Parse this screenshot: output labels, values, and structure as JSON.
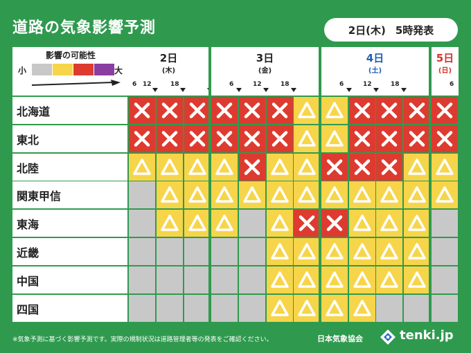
{
  "title": "道路の気象影響予測",
  "issued": {
    "date": "2日(木)",
    "time": "5時発表"
  },
  "legend": {
    "title": "影響の可能性",
    "small": "小",
    "large": "大",
    "levels": [
      {
        "name": "none",
        "color": "#c8c8c8"
      },
      {
        "name": "low",
        "color": "#f6d54a"
      },
      {
        "name": "high",
        "color": "#dd3b30"
      },
      {
        "name": "very-high",
        "color": "#8b3ea0"
      }
    ]
  },
  "days": [
    {
      "day": "2日",
      "dow": "(木)",
      "color": "#222222",
      "hours": [
        "6",
        "12",
        "18"
      ]
    },
    {
      "day": "3日",
      "dow": "(金)",
      "color": "#222222",
      "hours": [
        "6",
        "12",
        "18"
      ]
    },
    {
      "day": "4日",
      "dow": "(土)",
      "color": "#1f5fb8",
      "hours": [
        "6",
        "12",
        "18"
      ]
    },
    {
      "day": "5日",
      "dow": "(日)",
      "color": "#d2342b",
      "hours": [
        "6"
      ]
    }
  ],
  "regions": [
    {
      "name": "北海道",
      "cells": [
        "x",
        "x",
        "x",
        "x",
        "x",
        "x",
        "tri",
        "tri",
        "x",
        "x",
        "x",
        "x"
      ]
    },
    {
      "name": "東北",
      "cells": [
        "x",
        "x",
        "x",
        "x",
        "x",
        "x",
        "tri",
        "tri",
        "x",
        "x",
        "x",
        "x"
      ]
    },
    {
      "name": "北陸",
      "cells": [
        "tri",
        "tri",
        "tri",
        "tri",
        "x",
        "tri",
        "tri",
        "x",
        "x",
        "x",
        "tri",
        "tri"
      ]
    },
    {
      "name": "関東甲信",
      "cells": [
        "gray",
        "tri",
        "tri",
        "tri",
        "tri",
        "tri",
        "tri",
        "tri",
        "tri",
        "tri",
        "tri",
        "tri"
      ]
    },
    {
      "name": "東海",
      "cells": [
        "gray",
        "tri",
        "tri",
        "tri",
        "gray",
        "tri",
        "x",
        "x",
        "tri",
        "tri",
        "tri",
        "gray"
      ]
    },
    {
      "name": "近畿",
      "cells": [
        "gray",
        "gray",
        "gray",
        "gray",
        "gray",
        "tri",
        "tri",
        "tri",
        "tri",
        "tri",
        "tri",
        "gray"
      ]
    },
    {
      "name": "中国",
      "cells": [
        "gray",
        "gray",
        "gray",
        "gray",
        "gray",
        "tri",
        "tri",
        "tri",
        "tri",
        "tri",
        "tri",
        "gray"
      ]
    },
    {
      "name": "四国",
      "cells": [
        "gray",
        "gray",
        "gray",
        "gray",
        "gray",
        "tri",
        "tri",
        "tri",
        "tri",
        "gray",
        "gray",
        "gray"
      ]
    }
  ],
  "footer": {
    "note": "※気象予測に基づく影響予測です。実際の規制状況は道路管理者等の発表をご確認ください。",
    "org": "日本気象協会",
    "brand": "tenki.jp"
  }
}
